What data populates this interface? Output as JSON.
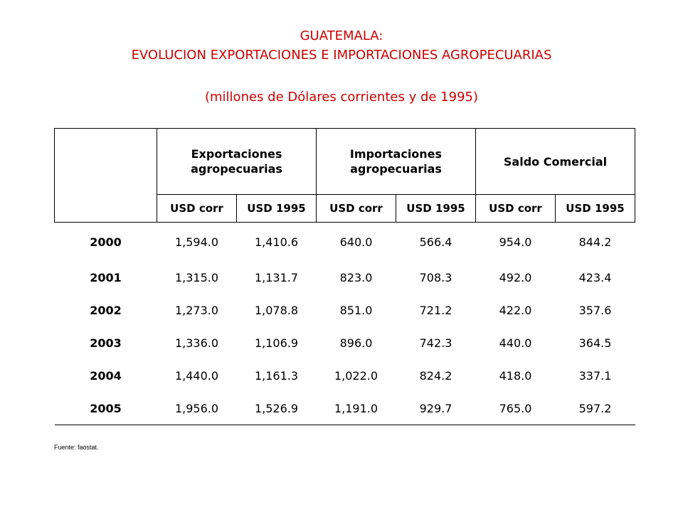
{
  "title": {
    "line1": "GUATEMALA:",
    "line2": "EVOLUCION  EXPORTACIONES E IMPORTACIONES AGROPECUARIAS",
    "line3": "(millones de Dólares corrientes y de 1995)"
  },
  "table": {
    "groups": [
      {
        "line1": "Exportaciones",
        "line2": "agropecuarias"
      },
      {
        "line1": "Importaciones",
        "line2": "agropecuarias"
      },
      {
        "line1": "Saldo Comercial",
        "line2": ""
      }
    ],
    "subheaders": [
      "USD corr",
      "USD 1995",
      "USD corr",
      "USD 1995",
      "USD corr",
      "USD 1995"
    ],
    "rows": [
      {
        "year": "2000",
        "values": [
          "1,594.0",
          "1,410.6",
          "640.0",
          "566.4",
          "954.0",
          "844.2"
        ]
      },
      {
        "year": "2001",
        "values": [
          "1,315.0",
          "1,131.7",
          "823.0",
          "708.3",
          "492.0",
          "423.4"
        ]
      },
      {
        "year": "2002",
        "values": [
          "1,273.0",
          "1,078.8",
          "851.0",
          "721.2",
          "422.0",
          "357.6"
        ]
      },
      {
        "year": "2003",
        "values": [
          "1,336.0",
          "1,106.9",
          "896.0",
          "742.3",
          "440.0",
          "364.5"
        ]
      },
      {
        "year": "2004",
        "values": [
          "1,440.0",
          "1,161.3",
          "1,022.0",
          "824.2",
          "418.0",
          "337.1"
        ]
      },
      {
        "year": "2005",
        "values": [
          "1,956.0",
          "1,526.9",
          "1,191.0",
          "929.7",
          "765.0",
          "597.2"
        ]
      }
    ]
  },
  "source": "Fuente: faostat."
}
